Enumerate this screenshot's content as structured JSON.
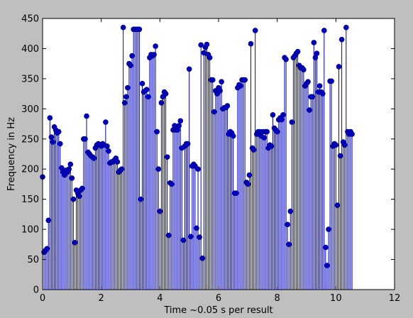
{
  "chart_data": {
    "type": "stem",
    "title": "",
    "xlabel": "Time ~0.05 s per result",
    "ylabel": "Frequency in Hz",
    "xlim": [
      0,
      12
    ],
    "ylim": [
      0,
      450
    ],
    "xticks": [
      0,
      2,
      4,
      6,
      8,
      10,
      12
    ],
    "yticks": [
      0,
      50,
      100,
      150,
      200,
      250,
      300,
      350,
      400,
      450
    ],
    "grid": false,
    "legend": "none",
    "x_step": 0.05,
    "series": [
      {
        "values": [
          187,
          62,
          65,
          68,
          115,
          285,
          253,
          245,
          270,
          265,
          260,
          262,
          242,
          202,
          195,
          190,
          198,
          195,
          200,
          208,
          185,
          150,
          78,
          165,
          160,
          155,
          165,
          168,
          250,
          250,
          288,
          228,
          225,
          222,
          220,
          218,
          235,
          240,
          242,
          240,
          238,
          242,
          240,
          278,
          238,
          230,
          210,
          212,
          212,
          215,
          218,
          212,
          195,
          198,
          200,
          435,
          310,
          320,
          335,
          375,
          372,
          388,
          432,
          432,
          432,
          432,
          432,
          150,
          342,
          328,
          330,
          332,
          320,
          385,
          390,
          388,
          390,
          404,
          262,
          200,
          130,
          310,
          320,
          328,
          325,
          220,
          90,
          177,
          175,
          265,
          272,
          265,
          265,
          272,
          280,
          235,
          82,
          238,
          242,
          242,
          366,
          88,
          205,
          208,
          205,
          102,
          200,
          87,
          406,
          52,
          393,
          402,
          407,
          390,
          385,
          348,
          348,
          295,
          330,
          325,
          335,
          330,
          345,
          300,
          302,
          302,
          305,
          258,
          262,
          260,
          255,
          160,
          160,
          335,
          340,
          338,
          348,
          348,
          348,
          178,
          175,
          190,
          408,
          235,
          232,
          430,
          258,
          262,
          262,
          255,
          262,
          252,
          262,
          262,
          235,
          240,
          238,
          290,
          268,
          265,
          262,
          282,
          285,
          282,
          290,
          385,
          382,
          108,
          75,
          130,
          278,
          385,
          388,
          392,
          395,
          372,
          368,
          368,
          365,
          338,
          342,
          345,
          298,
          320,
          320,
          410,
          385,
          392,
          328,
          338,
          328,
          325,
          430,
          70,
          40,
          100,
          346,
          346,
          238,
          242,
          240,
          140,
          370,
          222,
          415,
          245,
          240,
          435,
          262,
          258,
          262,
          258
        ]
      }
    ],
    "colors": {
      "marker": "#0000bf",
      "stem": "#0000bf",
      "frame": "#000000",
      "plot_bg": "#ffffff",
      "figure_bg": "#bfbfbf"
    }
  }
}
